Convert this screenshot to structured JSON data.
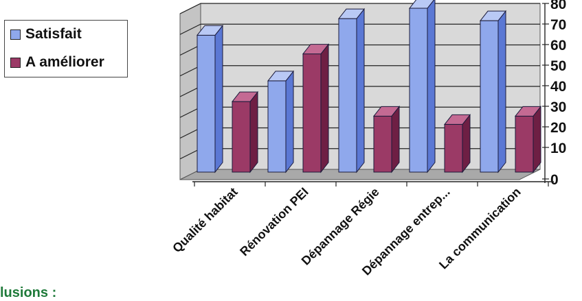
{
  "chart_data": {
    "type": "bar",
    "title": "",
    "xlabel": "",
    "ylabel": "",
    "categories": [
      "Qualité habitat",
      "Rénovation PEI",
      "Dépannage Régie",
      "Dépannage entrep...",
      "La communication"
    ],
    "series": [
      {
        "name": "Satisfait",
        "values": [
          66,
          44,
          74,
          79,
          73
        ],
        "color": "#6f8fe0"
      },
      {
        "name": "A améliorer",
        "values": [
          34,
          57,
          27,
          23,
          27
        ],
        "color": "#8b2d5a"
      }
    ],
    "ylim": [
      0,
      80
    ],
    "yticks": [
      "0",
      "10",
      "20",
      "30",
      "40",
      "50",
      "60",
      "70",
      "80"
    ],
    "grid": true,
    "legend_position": "left",
    "three_d": true
  },
  "footer": {
    "text": "lusions :"
  }
}
